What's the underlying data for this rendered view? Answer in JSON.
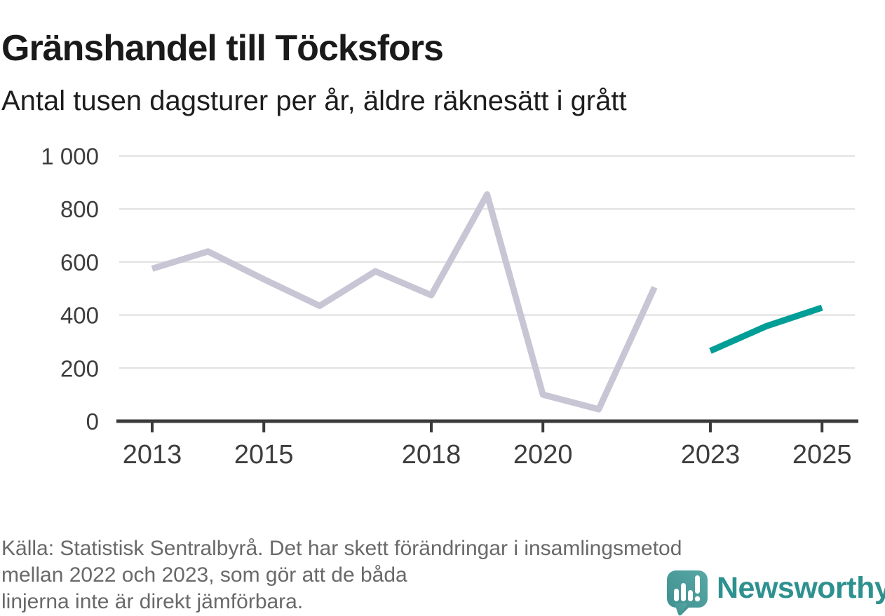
{
  "header": {
    "title": "Gränshandel till Töcksfors",
    "subtitle": "Antal tusen dagsturer per år, äldre räknesätt i grått"
  },
  "chart_data": {
    "type": "line",
    "title": "Gränshandel till Töcksfors",
    "subtitle": "Antal tusen dagsturer per år, äldre räknesätt i grått",
    "ylabel": "Antal tusen dagsturer per år",
    "ylim": [
      0,
      1000
    ],
    "xlim": [
      2012.4,
      2025.6
    ],
    "grid": "horizontal",
    "legend_position": "none",
    "yticks": [
      0,
      200,
      400,
      600,
      800,
      1000
    ],
    "ytick_labels": [
      "0",
      "200",
      "400",
      "600",
      "800",
      "1 000"
    ],
    "xticks": [
      2013,
      2015,
      2018,
      2020,
      2023,
      2025
    ],
    "xtick_labels": [
      "2013",
      "2015",
      "2018",
      "2020",
      "2023",
      "2025"
    ],
    "series": [
      {
        "id": "aldre-raknesatt-gra-linje",
        "color": "#c8c6d4",
        "x": [
          2013,
          2014,
          2015,
          2016,
          2017,
          2018,
          2019,
          2020,
          2021,
          2022
        ],
        "values": [
          575,
          640,
          535,
          435,
          565,
          475,
          855,
          100,
          45,
          505
        ]
      },
      {
        "id": "nya-raknesatt-teal-linje",
        "color": "#009e96",
        "x": [
          2023,
          2024,
          2025
        ],
        "values": [
          265,
          358,
          428
        ]
      }
    ]
  },
  "footer": {
    "source_lines": [
      "Källa: Statistisk Sentralbyrå. Det har skett förändringar i insamlingsmetod",
      "mellan 2022 och 2023, som gör att de båda",
      "linjerna inte är direkt jämförbara."
    ],
    "logo_text": "Newsworthy"
  },
  "colors": {
    "axis": "#3b3b3b",
    "tick_label": "#3d3d3d",
    "gridline": "#e4e4e4",
    "footer_text": "#696969",
    "logo_teal": "#2e918f"
  }
}
